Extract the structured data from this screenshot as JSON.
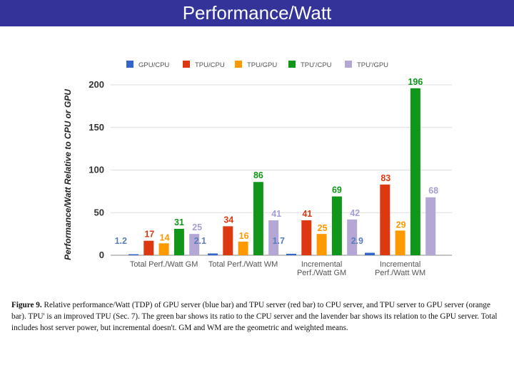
{
  "page": {
    "title": "Performance/Watt"
  },
  "chart_data": {
    "type": "bar",
    "title": "",
    "ylabel": "Performance/Watt Relative to CPU or GPU",
    "xlabel": "",
    "ylim": [
      0,
      200
    ],
    "yticks": [
      0,
      50,
      100,
      150,
      200
    ],
    "categories": [
      [
        "Total Perf./Watt GM"
      ],
      [
        "Total Perf./Watt WM"
      ],
      [
        "Incremental",
        "Perf./Watt GM"
      ],
      [
        "Incremental",
        "Perf./Watt WM"
      ]
    ],
    "series": [
      {
        "name": "GPU/CPU",
        "color": "#3366cc",
        "values": [
          1.2,
          2.1,
          1.7,
          2.9
        ],
        "labels": [
          "1.2",
          "2.1",
          "1.7",
          "2.9"
        ],
        "label_color": "#5a7fb8"
      },
      {
        "name": "TPU/CPU",
        "color": "#dc3912",
        "values": [
          17,
          34,
          41,
          83
        ],
        "labels": [
          "17",
          "34",
          "41",
          "83"
        ],
        "label_color": "#dc3912"
      },
      {
        "name": "TPU/GPU",
        "color": "#ff9900",
        "values": [
          14,
          16,
          25,
          29
        ],
        "labels": [
          "14",
          "16",
          "25",
          "29"
        ],
        "label_color": "#ff9900"
      },
      {
        "name": "TPU'/CPU",
        "color": "#109618",
        "values": [
          31,
          86,
          69,
          196
        ],
        "labels": [
          "31",
          "86",
          "69",
          "196"
        ],
        "label_color": "#109618"
      },
      {
        "name": "TPU'/GPU",
        "color": "#b4a7d6",
        "values": [
          25,
          41,
          42,
          68
        ],
        "labels": [
          "25",
          "41",
          "42",
          "68"
        ],
        "label_color": "#a89cd4"
      }
    ],
    "legend_position": "top",
    "grid": true
  },
  "caption": {
    "label": "Figure 9.",
    "text": " Relative performance/Watt (TDP) of GPU server (blue bar) and TPU server (red bar) to CPU server, and TPU server to GPU server (orange bar).  TPU' is an improved TPU (Sec. 7). The green bar shows its ratio to the CPU server and the lavender bar shows its relation to the GPU server. Total includes host server power, but incremental doesn't. GM and WM are the geometric and weighted  means."
  }
}
